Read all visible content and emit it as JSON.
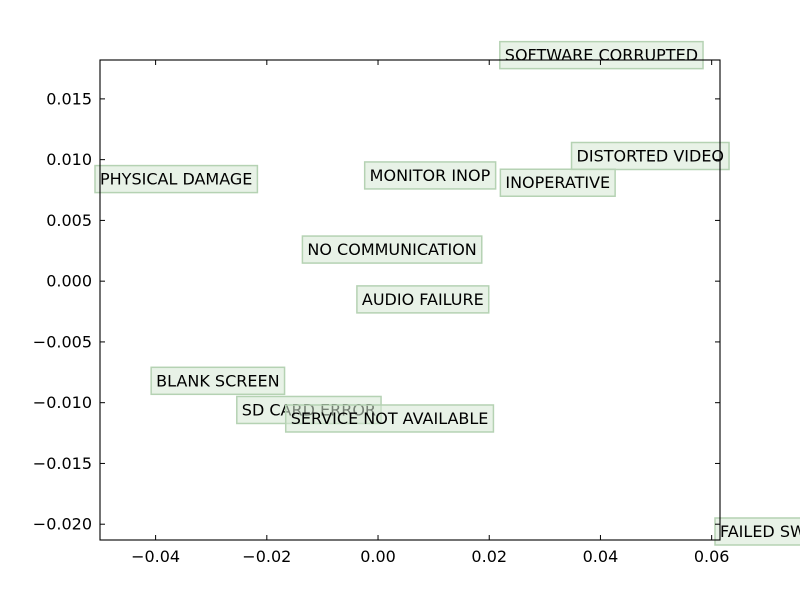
{
  "chart_data": {
    "type": "scatter",
    "title": "",
    "xlabel": "",
    "ylabel": "",
    "xlim": [
      -0.05,
      0.0615
    ],
    "ylim": [
      -0.0213,
      0.0182
    ],
    "grid": false,
    "label_box_color": "#d5e8d4",
    "points": [
      {
        "label": "SOFTWARE CORRUPTED",
        "x": 0.0228,
        "y": 0.0186
      },
      {
        "label": "DISTORTED VIDEO",
        "x": 0.0357,
        "y": 0.0103
      },
      {
        "label": "PHYSICAL DAMAGE",
        "x": -0.05,
        "y": 0.0084
      },
      {
        "label": "MONITOR INOP",
        "x": -0.0015,
        "y": 0.0087
      },
      {
        "label": "INOPERATIVE",
        "x": 0.0229,
        "y": 0.0081
      },
      {
        "label": "NO COMMUNICATION",
        "x": -0.0127,
        "y": 0.0026
      },
      {
        "label": "AUDIO FAILURE",
        "x": -0.0029,
        "y": -0.0015
      },
      {
        "label": "BLANK SCREEN",
        "x": -0.0399,
        "y": -0.0082
      },
      {
        "label": "SD CARD ERROR",
        "x": -0.0245,
        "y": -0.0106
      },
      {
        "label": "SERVICE NOT AVAILABLE",
        "x": -0.0157,
        "y": -0.0113
      },
      {
        "label": "FAILED SW",
        "x": 0.0615,
        "y": -0.0206
      }
    ],
    "xticks": [
      {
        "value": -0.04,
        "label": "−0.04"
      },
      {
        "value": -0.02,
        "label": "−0.02"
      },
      {
        "value": 0.0,
        "label": "0.00"
      },
      {
        "value": 0.02,
        "label": "0.02"
      },
      {
        "value": 0.04,
        "label": "0.04"
      },
      {
        "value": 0.06,
        "label": "0.06"
      }
    ],
    "yticks": [
      {
        "value": 0.015,
        "label": "0.015"
      },
      {
        "value": 0.01,
        "label": "0.010"
      },
      {
        "value": 0.005,
        "label": "0.005"
      },
      {
        "value": 0.0,
        "label": "0.000"
      },
      {
        "value": -0.005,
        "label": "−0.005"
      },
      {
        "value": -0.01,
        "label": "−0.010"
      },
      {
        "value": -0.015,
        "label": "−0.015"
      },
      {
        "value": -0.02,
        "label": "−0.020"
      }
    ]
  }
}
